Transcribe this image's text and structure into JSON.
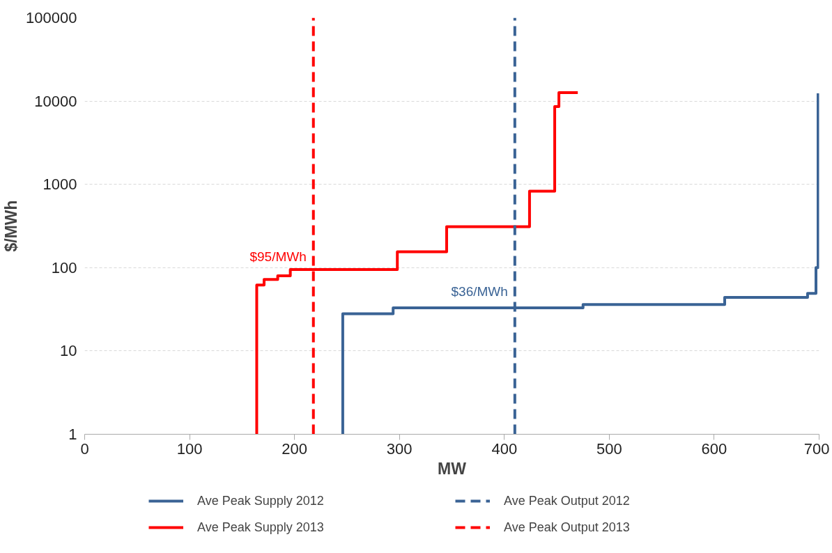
{
  "chart_data": {
    "type": "line",
    "xlabel": "MW",
    "ylabel": "$/MWh",
    "xlim": [
      0,
      700
    ],
    "xticks": [
      0,
      100,
      200,
      300,
      400,
      500,
      600,
      700
    ],
    "ylim": [
      1,
      100000
    ],
    "yticks": [
      1,
      10,
      100,
      1000,
      10000,
      100000
    ],
    "log": "y",
    "grid": "y",
    "legend": "bottom",
    "line_style": "solid",
    "marker": "none",
    "series": [
      {
        "name": "Ave Peak Supply 2012",
        "color": "#3a6395",
        "x": [
          246,
          246,
          294,
          294,
          475,
          475,
          610,
          610,
          689,
          689,
          697,
          697,
          699,
          699
        ],
        "values": [
          1,
          28,
          28,
          33,
          33,
          36,
          36,
          44,
          44,
          49,
          49,
          100,
          100,
          12400
        ]
      },
      {
        "name": "Ave Peak Supply 2013",
        "color": "#ff0000",
        "x": [
          164,
          164,
          171,
          171,
          184,
          184,
          196,
          196,
          298,
          298,
          345,
          345,
          424,
          424,
          448,
          448,
          452,
          452,
          470
        ],
        "values": [
          1,
          62,
          62,
          72,
          72,
          80,
          80,
          95,
          95,
          155,
          155,
          310,
          310,
          830,
          830,
          8600,
          8600,
          12600,
          12600
        ]
      }
    ],
    "ref_lines": [
      {
        "axis": "x",
        "value": 410,
        "label": "Ave Peak Output 2012",
        "color": "#3a6395",
        "line_style": "dashed"
      },
      {
        "axis": "x",
        "value": 218,
        "label": "Ave Peak Output 2013",
        "color": "#ff0000",
        "line_style": "dashed"
      }
    ],
    "annotations": [
      {
        "text": "$95/MWh",
        "x": 218,
        "y": 95
      },
      {
        "text": "$36/MWh",
        "x": 410,
        "y": 36
      }
    ]
  }
}
